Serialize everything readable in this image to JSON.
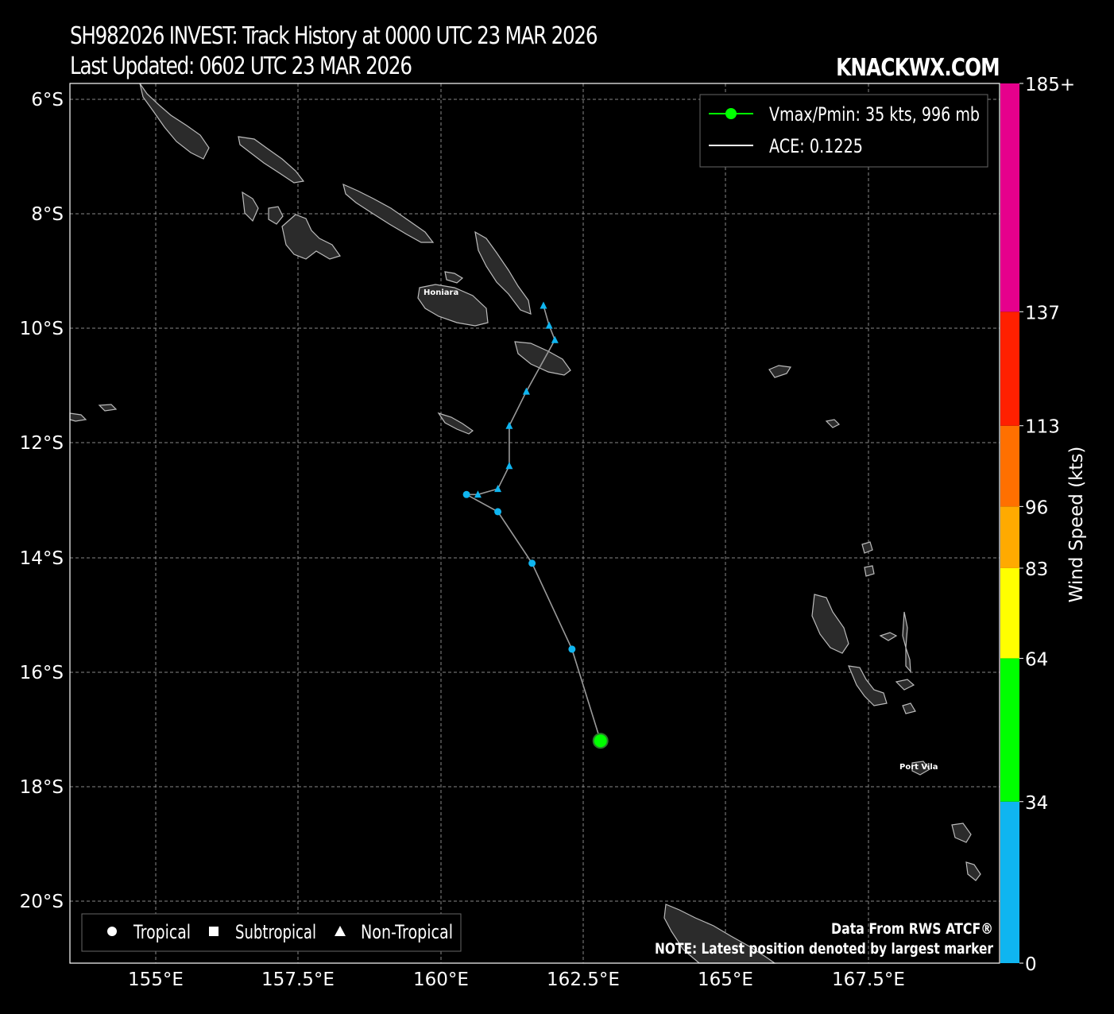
{
  "header": {
    "title_line1": "SH982026 INVEST: Track History at 0000 UTC 23 MAR 2026",
    "title_line2": "Last Updated: 0602 UTC 23 MAR 2026",
    "brand": "KNACKWX.COM"
  },
  "axes": {
    "lon_ticks": [
      "155°E",
      "157.5°E",
      "160°E",
      "162.5°E",
      "165°E",
      "167.5°E"
    ],
    "lat_ticks": [
      "6°S",
      "8°S",
      "10°S",
      "12°S",
      "14°S",
      "16°S",
      "18°S",
      "20°S"
    ],
    "lon_range": [
      153.4,
      169.7
    ],
    "lat_range": [
      -5.8,
      -21.1
    ]
  },
  "legend_top": {
    "vmax_label": "Vmax/Pmin: 35 kts, 996 mb",
    "ace_label": "ACE: 0.1225",
    "vmax_color": "#00ff00",
    "ace_color": "#ffffff"
  },
  "legend_bottom": {
    "tropical": "Tropical",
    "subtropical": "Subtropical",
    "nontropical": "Non-Tropical"
  },
  "notes": {
    "source": "Data From RWS ATCF®",
    "latest": "NOTE: Latest position denoted by largest marker"
  },
  "places": {
    "honiara": "Honiara",
    "port_vila": "Port Vila"
  },
  "colorbar": {
    "label": "Wind Speed (kts)",
    "ticks": [
      "0",
      "34",
      "64",
      "83",
      "96",
      "113",
      "137",
      "185+"
    ],
    "segments": [
      {
        "from": 0,
        "to": 34,
        "color": "#0fb5f0"
      },
      {
        "from": 34,
        "to": 64,
        "color": "#00ff00"
      },
      {
        "from": 64,
        "to": 83,
        "color": "#ffff00"
      },
      {
        "from": 83,
        "to": 96,
        "color": "#ffaa00"
      },
      {
        "from": 96,
        "to": 113,
        "color": "#ff7000"
      },
      {
        "from": 113,
        "to": 137,
        "color": "#ff2000"
      },
      {
        "from": 137,
        "to": 185,
        "color": "#e6008c"
      }
    ]
  },
  "track": [
    {
      "lon": 161.8,
      "lat": -9.6,
      "type": "nontropical"
    },
    {
      "lon": 161.9,
      "lat": -9.95,
      "type": "nontropical"
    },
    {
      "lon": 162.0,
      "lat": -10.2,
      "type": "nontropical"
    },
    {
      "lon": 161.5,
      "lat": -11.1,
      "type": "nontropical"
    },
    {
      "lon": 161.2,
      "lat": -11.7,
      "type": "nontropical"
    },
    {
      "lon": 161.2,
      "lat": -12.4,
      "type": "nontropical"
    },
    {
      "lon": 161.0,
      "lat": -12.8,
      "type": "nontropical"
    },
    {
      "lon": 160.65,
      "lat": -12.9,
      "type": "nontropical"
    },
    {
      "lon": 160.45,
      "lat": -12.9,
      "type": "tropical"
    },
    {
      "lon": 161.0,
      "lat": -13.2,
      "type": "tropical"
    },
    {
      "lon": 161.6,
      "lat": -14.1,
      "type": "tropical"
    },
    {
      "lon": 162.3,
      "lat": -15.6,
      "type": "tropical"
    },
    {
      "lon": 162.8,
      "lat": -17.2,
      "type": "tropical",
      "latest": true,
      "color": "#00ff00"
    }
  ]
}
